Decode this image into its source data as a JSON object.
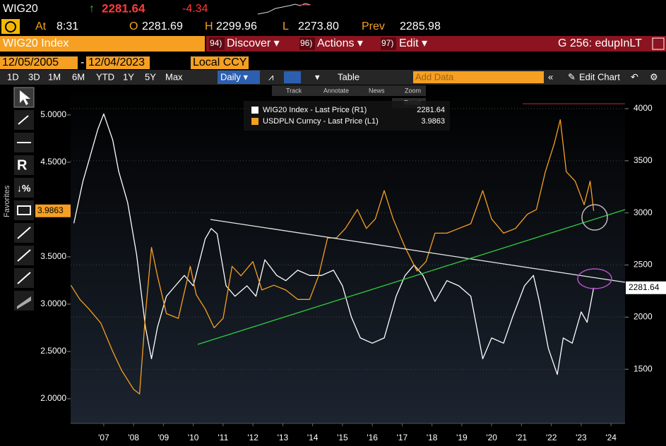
{
  "header": {
    "ticker": "WIG20",
    "arrow": "↑",
    "last": "2281.64",
    "change": "-4.34",
    "time_label": "At",
    "time": "8:31",
    "open_label": "O",
    "open": "2281.69",
    "high_label": "H",
    "high": "2299.96",
    "low_label": "L",
    "low": "2273.80",
    "prev_label": "Prev",
    "prev": "2285.98"
  },
  "menu": {
    "security": "WIG20 Index",
    "items": [
      "94)",
      "Discover ▾",
      "96)",
      "Actions ▾",
      "97)",
      "Edit ▾"
    ],
    "page": "G 256: edupInLT"
  },
  "toolbar": {
    "start_date": "12/05/2005",
    "dash": "-",
    "end_date": "12/04/2023",
    "currency": "Local CCY",
    "ranges": [
      "1D",
      "3D",
      "1M",
      "6M",
      "YTD",
      "1Y",
      "5Y",
      "Max"
    ],
    "frequency": "Daily ▾",
    "table": "Table",
    "add_data": "Add Data",
    "edit_chart": "Edit Chart",
    "tools": [
      "Track",
      "Annotate",
      "News",
      "Zoom"
    ],
    "reset": "Reset",
    "favorites": "Favorites"
  },
  "chart_data": {
    "type": "line",
    "series": [
      {
        "name": "WIG20 Index - Last Price (R1)",
        "color": "#ffffff",
        "axis": "y2",
        "x": [
          2006.5,
          2006.8,
          2007.0,
          2007.3,
          2007.5,
          2007.8,
          2008.0,
          2008.3,
          2008.6,
          2008.9,
          2009.1,
          2009.3,
          2009.6,
          2009.9,
          2010.2,
          2010.5,
          2010.9,
          2011.1,
          2011.3,
          2011.6,
          2011.9,
          2012.3,
          2012.6,
          2012.9,
          2013.3,
          2013.6,
          2014.0,
          2014.4,
          2014.8,
          2015.2,
          2015.5,
          2015.8,
          2016.1,
          2016.5,
          2016.9,
          2017.3,
          2017.6,
          2017.9,
          2018.2,
          2018.6,
          2019.0,
          2019.4,
          2019.8,
          2020.2,
          2020.5,
          2020.9,
          2021.2,
          2021.6,
          2021.9,
          2022.1,
          2022.4,
          2022.7,
          2022.9,
          2023.2,
          2023.5,
          2023.7,
          2023.92
        ],
        "values": [
          2900,
          3300,
          3500,
          3800,
          3950,
          3700,
          3400,
          3100,
          2600,
          1900,
          1600,
          1900,
          2200,
          2300,
          2400,
          2300,
          2750,
          2850,
          2800,
          2300,
          2200,
          2300,
          2200,
          2550,
          2400,
          2350,
          2450,
          2400,
          2400,
          2450,
          2300,
          2000,
          1800,
          1750,
          1800,
          2200,
          2400,
          2500,
          2400,
          2150,
          2350,
          2300,
          2200,
          1600,
          1800,
          1750,
          2000,
          2300,
          2400,
          2150,
          1700,
          1450,
          1800,
          1750,
          2050,
          1950,
          2281.64
        ]
      },
      {
        "name": "USDPLN Curncy - Last Price (L1)",
        "color": "#f5a023",
        "axis": "y",
        "x": [
          2006.4,
          2006.7,
          2007.0,
          2007.4,
          2007.8,
          2008.1,
          2008.5,
          2008.7,
          2008.9,
          2009.1,
          2009.3,
          2009.6,
          2010.0,
          2010.4,
          2010.6,
          2010.9,
          2011.2,
          2011.5,
          2011.8,
          2012.1,
          2012.5,
          2012.8,
          2013.2,
          2013.6,
          2014.0,
          2014.4,
          2014.7,
          2015.0,
          2015.3,
          2015.6,
          2016.0,
          2016.3,
          2016.6,
          2016.9,
          2017.2,
          2017.6,
          2018.0,
          2018.3,
          2018.6,
          2019.0,
          2019.4,
          2019.8,
          2020.2,
          2020.5,
          2020.9,
          2021.3,
          2021.7,
          2022.0,
          2022.3,
          2022.6,
          2022.8,
          2023.0,
          2023.3,
          2023.6,
          2023.8,
          2023.92
        ],
        "values": [
          3.2,
          3.05,
          2.95,
          2.8,
          2.5,
          2.3,
          2.1,
          2.05,
          2.9,
          3.6,
          3.3,
          2.9,
          2.85,
          3.4,
          3.1,
          2.95,
          2.75,
          2.85,
          3.4,
          3.3,
          3.45,
          3.15,
          3.2,
          3.15,
          3.05,
          3.05,
          3.3,
          3.7,
          3.7,
          3.8,
          4.0,
          3.8,
          3.9,
          4.2,
          3.9,
          3.6,
          3.35,
          3.45,
          3.75,
          3.75,
          3.8,
          3.85,
          4.2,
          3.9,
          3.75,
          3.8,
          3.95,
          4.0,
          4.4,
          4.7,
          4.95,
          4.4,
          4.3,
          4.05,
          4.3,
          3.9863
        ]
      }
    ],
    "xlim": [
      2006.39,
      2024.97
    ],
    "xticks": [
      {
        "value": 2007.5,
        "label": "'07"
      },
      {
        "value": 2008.5,
        "label": "'08"
      },
      {
        "value": 2009.5,
        "label": "'09"
      },
      {
        "value": 2010.5,
        "label": "'10"
      },
      {
        "value": 2011.5,
        "label": "'11"
      },
      {
        "value": 2012.5,
        "label": "'12"
      },
      {
        "value": 2013.5,
        "label": "'13"
      },
      {
        "value": 2014.5,
        "label": "'14"
      },
      {
        "value": 2015.5,
        "label": "'15"
      },
      {
        "value": 2016.5,
        "label": "'16"
      },
      {
        "value": 2017.5,
        "label": "'17"
      },
      {
        "value": 2018.5,
        "label": "'18"
      },
      {
        "value": 2019.5,
        "label": "'19"
      },
      {
        "value": 2020.5,
        "label": "'20"
      },
      {
        "value": 2021.5,
        "label": "'21"
      },
      {
        "value": 2022.5,
        "label": "'22"
      },
      {
        "value": 2023.5,
        "label": "'23"
      },
      {
        "value": 2024.5,
        "label": "'24"
      }
    ],
    "ylim": [
      1.739,
      5.32
    ],
    "yticks": [
      {
        "value": 2,
        "label": "2.0000"
      },
      {
        "value": 2.5,
        "label": "2.5000"
      },
      {
        "value": 3,
        "label": "3.0000"
      },
      {
        "value": 3.5,
        "label": "3.5000"
      },
      {
        "value": 4.5,
        "label": "4.5000"
      },
      {
        "value": 5,
        "label": "5.0000"
      }
    ],
    "y2lim": [
      980,
      4230
    ],
    "y2ticks": [
      1500,
      2000,
      2500,
      3000,
      3500,
      4000
    ],
    "grid": true
  }
}
